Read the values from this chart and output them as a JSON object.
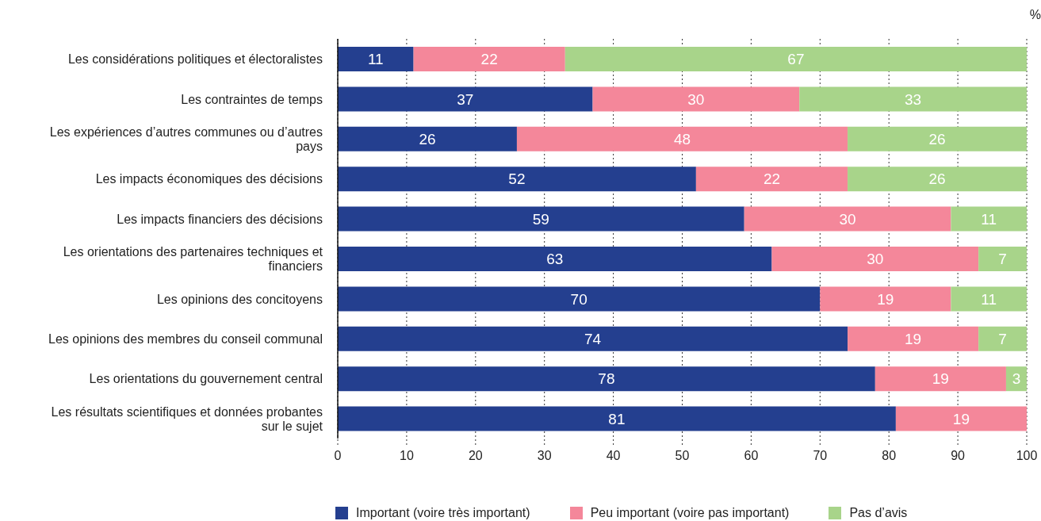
{
  "chart_data": {
    "type": "bar",
    "orientation": "horizontal",
    "stacked": true,
    "xlabel": "%",
    "categories": [
      "Les considérations politiques et électoralistes",
      "Les contraintes de temps",
      "Les expériences d’autres communes ou d’autres pays",
      "Les impacts économiques des décisions",
      "Les impacts financiers des décisions",
      "Les orientations des partenaires techniques et financiers",
      "Les opinions des concitoyens",
      "Les opinions des membres du conseil communal",
      "Les orientations du gouvernement central",
      "Les résultats scientifiques et données probantes sur le sujet"
    ],
    "series": [
      {
        "name": "Important (voire très important)",
        "color": "#243f8f",
        "values": [
          11,
          37,
          26,
          52,
          59,
          63,
          70,
          74,
          78,
          81
        ]
      },
      {
        "name": "Peu important (voire pas important)",
        "color": "#f4879a",
        "values": [
          22,
          30,
          48,
          22,
          30,
          30,
          19,
          19,
          19,
          19
        ]
      },
      {
        "name": "Pas d’avis",
        "color": "#a8d48a",
        "values": [
          67,
          33,
          26,
          26,
          11,
          7,
          11,
          7,
          3,
          null
        ]
      }
    ],
    "xlim": [
      0,
      100
    ],
    "xticks": [
      0,
      10,
      20,
      30,
      40,
      50,
      60,
      70,
      80,
      90,
      100
    ],
    "grid": "x",
    "legend": "bottom",
    "data_labels": true
  }
}
